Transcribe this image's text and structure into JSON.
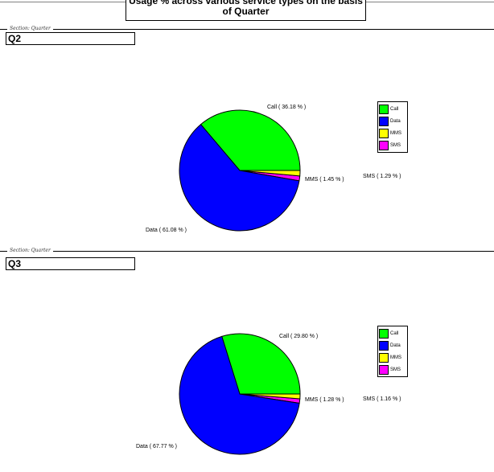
{
  "report": {
    "title_line1": "Usage % across various service types on the basis",
    "title_line2": "of Quarter"
  },
  "colors": {
    "call": "#00ff00",
    "data": "#0000ff",
    "mms": "#ffff00",
    "sms": "#ff00ff"
  },
  "sections": [
    {
      "caption": "Section: Quarter",
      "value": "Q2",
      "labels": {
        "call": "Call   ( 36.18 % )",
        "data": "Data   ( 61.08 % )",
        "mms": "MMS   ( 1.45 % )",
        "sms": "SMS   ( 1.29 % )"
      },
      "legend": [
        "Call",
        "Data",
        "MMS",
        "SMS"
      ]
    },
    {
      "caption": "Section: Quarter",
      "value": "Q3",
      "labels": {
        "call": "Call   ( 29.80 % )",
        "data": "Data   ( 67.77 % )",
        "mms": "MMS   ( 1.28 % )",
        "sms": "SMS   ( 1.16 % )"
      },
      "legend": [
        "Call",
        "Data",
        "MMS",
        "SMS"
      ]
    }
  ],
  "chart_data": [
    {
      "type": "pie",
      "title": "Usage % across various service types on the basis of Quarter",
      "section": "Q2",
      "categories": [
        "Call",
        "Data",
        "MMS",
        "SMS"
      ],
      "values": [
        36.18,
        61.08,
        1.45,
        1.29
      ],
      "legend": "right"
    },
    {
      "type": "pie",
      "title": "Usage % across various service types on the basis of Quarter",
      "section": "Q3",
      "categories": [
        "Call",
        "Data",
        "MMS",
        "SMS"
      ],
      "values": [
        29.8,
        67.77,
        1.28,
        1.16
      ],
      "legend": "right"
    }
  ]
}
